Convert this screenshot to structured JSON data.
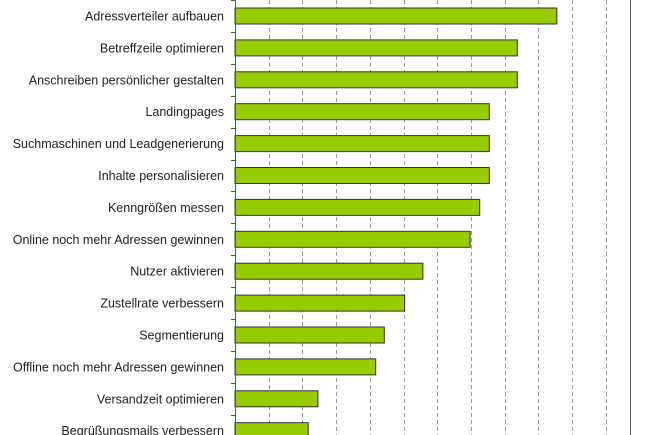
{
  "chart_data": {
    "type": "bar",
    "orientation": "horizontal",
    "title": "",
    "xlabel": "",
    "ylabel": "",
    "categories": [
      "Adressverteiler aufbauen",
      "Betreffzeile optimieren",
      "Anschreiben persönlicher gestalten",
      "Landingpages",
      "Suchmaschinen und Leadgenerierung",
      "Inhalte personalisieren",
      "Kenngrößen messen",
      "Online noch mehr Adressen gewinnen",
      "Nutzer aktivieren",
      "Zustellrate verbessern",
      "Segmentierung",
      "Offline noch mehr Adressen gewinnen",
      "Versandzeit optimieren",
      "Begrüßungsmails verbessern"
    ],
    "values": [
      33.4,
      29.3,
      29.3,
      26.4,
      26.4,
      26.4,
      25.4,
      24.4,
      19.5,
      17.6,
      15.5,
      14.6,
      8.6,
      7.6
    ],
    "xlim": [
      0,
      41
    ],
    "grid": true,
    "grid_step": 3.5,
    "bar_color": "#99cc00",
    "bar_edge_color": "#333333",
    "grid_color": "#999999",
    "axis_color": "#555555",
    "legend": "none"
  }
}
